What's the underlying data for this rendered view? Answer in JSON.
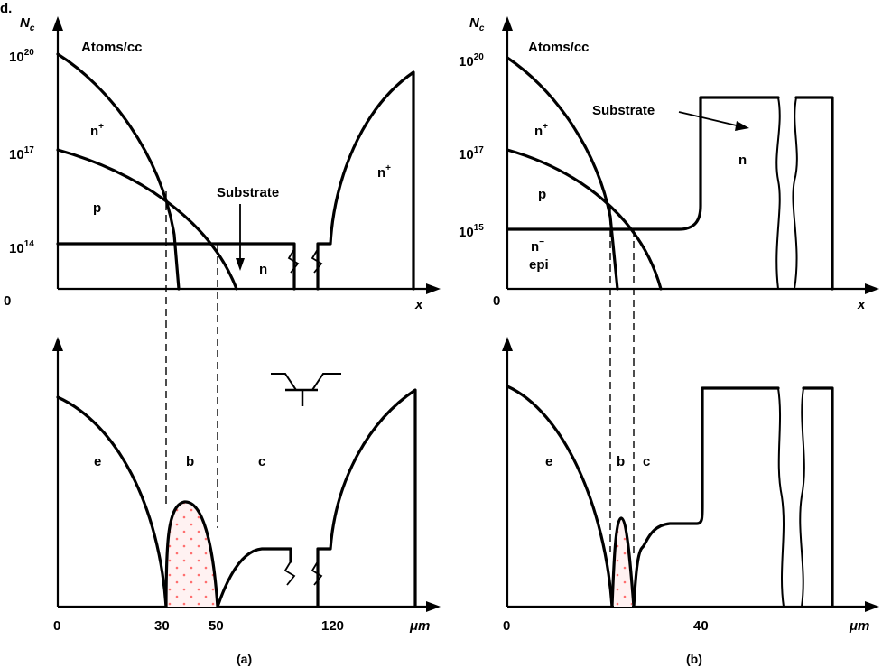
{
  "corner_text": "d.",
  "panel_a": {
    "y_axis_label": "N",
    "y_axis_sub": "c",
    "units": "Atoms/cc",
    "tick_1e20": "10",
    "tick_1e20_exp": "20",
    "tick_1e17": "10",
    "tick_1e17_exp": "17",
    "tick_1e14": "10",
    "tick_1e14_exp": "14",
    "origin": "0",
    "x_axis": "x",
    "region_nplus": "n",
    "region_nplus_sup": "+",
    "region_p": "p",
    "region_n": "n",
    "region_nplus_right": "n",
    "region_nplus_right_sup": "+",
    "substrate_label": "Substrate",
    "bottom_e": "e",
    "bottom_b": "b",
    "bottom_c": "c",
    "tick_0": "0",
    "tick_30": "30",
    "tick_50": "50",
    "tick_120": "120",
    "unit_um": "μm",
    "caption": "(a)"
  },
  "panel_b": {
    "y_axis_label": "N",
    "y_axis_sub": "c",
    "units": "Atoms/cc",
    "tick_1e20": "10",
    "tick_1e20_exp": "20",
    "tick_1e17": "10",
    "tick_1e17_exp": "17",
    "tick_1e15": "10",
    "tick_1e15_exp": "15",
    "origin": "0",
    "x_axis": "x",
    "region_nplus": "n",
    "region_nplus_sup": "+",
    "region_p": "p",
    "region_nminus": "n",
    "region_nminus_sup": "−",
    "region_epi": "epi",
    "region_n": "n",
    "substrate_label": "Substrate",
    "bottom_e": "e",
    "bottom_b": "b",
    "bottom_c": "c",
    "tick_0": "0",
    "tick_40": "40",
    "unit_um": "μm",
    "caption": "(b)"
  },
  "colors": {
    "line": "#000000",
    "dots": "#ff7f7f",
    "base_fill": "#ffe6e6"
  }
}
